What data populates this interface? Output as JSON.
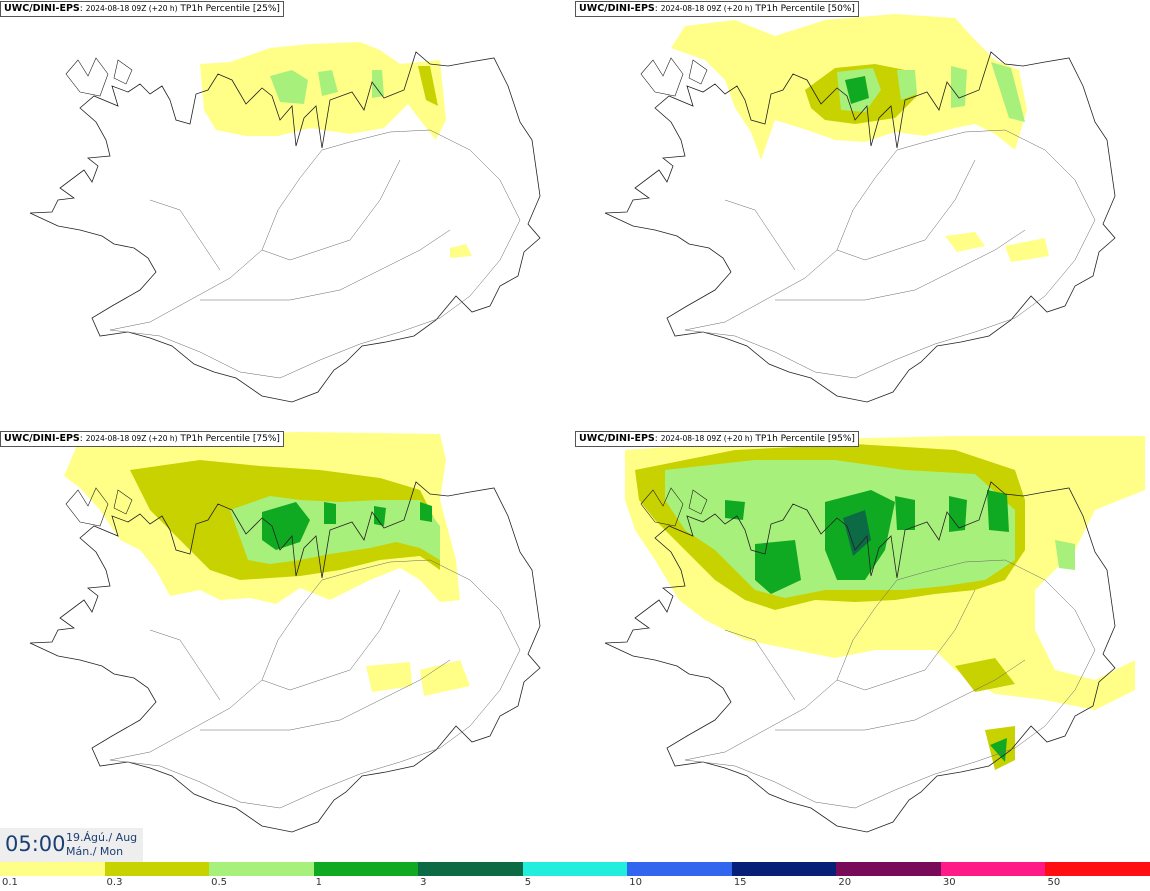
{
  "panels": [
    {
      "source": "UWC/DINI-EPS",
      "meta": "2024-08-18 09Z (+20 h)",
      "product": "TP1h Percentile [25%]"
    },
    {
      "source": "UWC/DINI-EPS",
      "meta": "2024-08-18 09Z (+20 h)",
      "product": "TP1h Percentile [50%]"
    },
    {
      "source": "UWC/DINI-EPS",
      "meta": "2024-08-18 09Z (+20 h)",
      "product": "TP1h Percentile [75%]"
    },
    {
      "source": "UWC/DINI-EPS",
      "meta": "2024-08-18 09Z (+20 h)",
      "product": "TP1h Percentile [95%]"
    }
  ],
  "valid_time": {
    "time": "05:00",
    "date": "19.Ágú./ Aug",
    "day": "Mán./ Mon"
  },
  "legend": {
    "labels": [
      "0.1",
      "0.3",
      "0.5",
      "1",
      "3",
      "5",
      "10",
      "15",
      "20",
      "30",
      "50"
    ],
    "colors": [
      "#ffff88",
      "#c8d200",
      "#a8f07c",
      "#10aa22",
      "#0c6b44",
      "#22eedd",
      "#3366ee",
      "#081f77",
      "#770b59",
      "#ff1a88",
      "#ff0e12"
    ]
  },
  "colors": {
    "light_yellow": "#ffff88",
    "olive": "#c8d200",
    "light_green": "#a8f07c",
    "green": "#10aa22",
    "dark_green": "#0c6b44",
    "coast": "#222222",
    "title_text": "#1b3f73"
  }
}
